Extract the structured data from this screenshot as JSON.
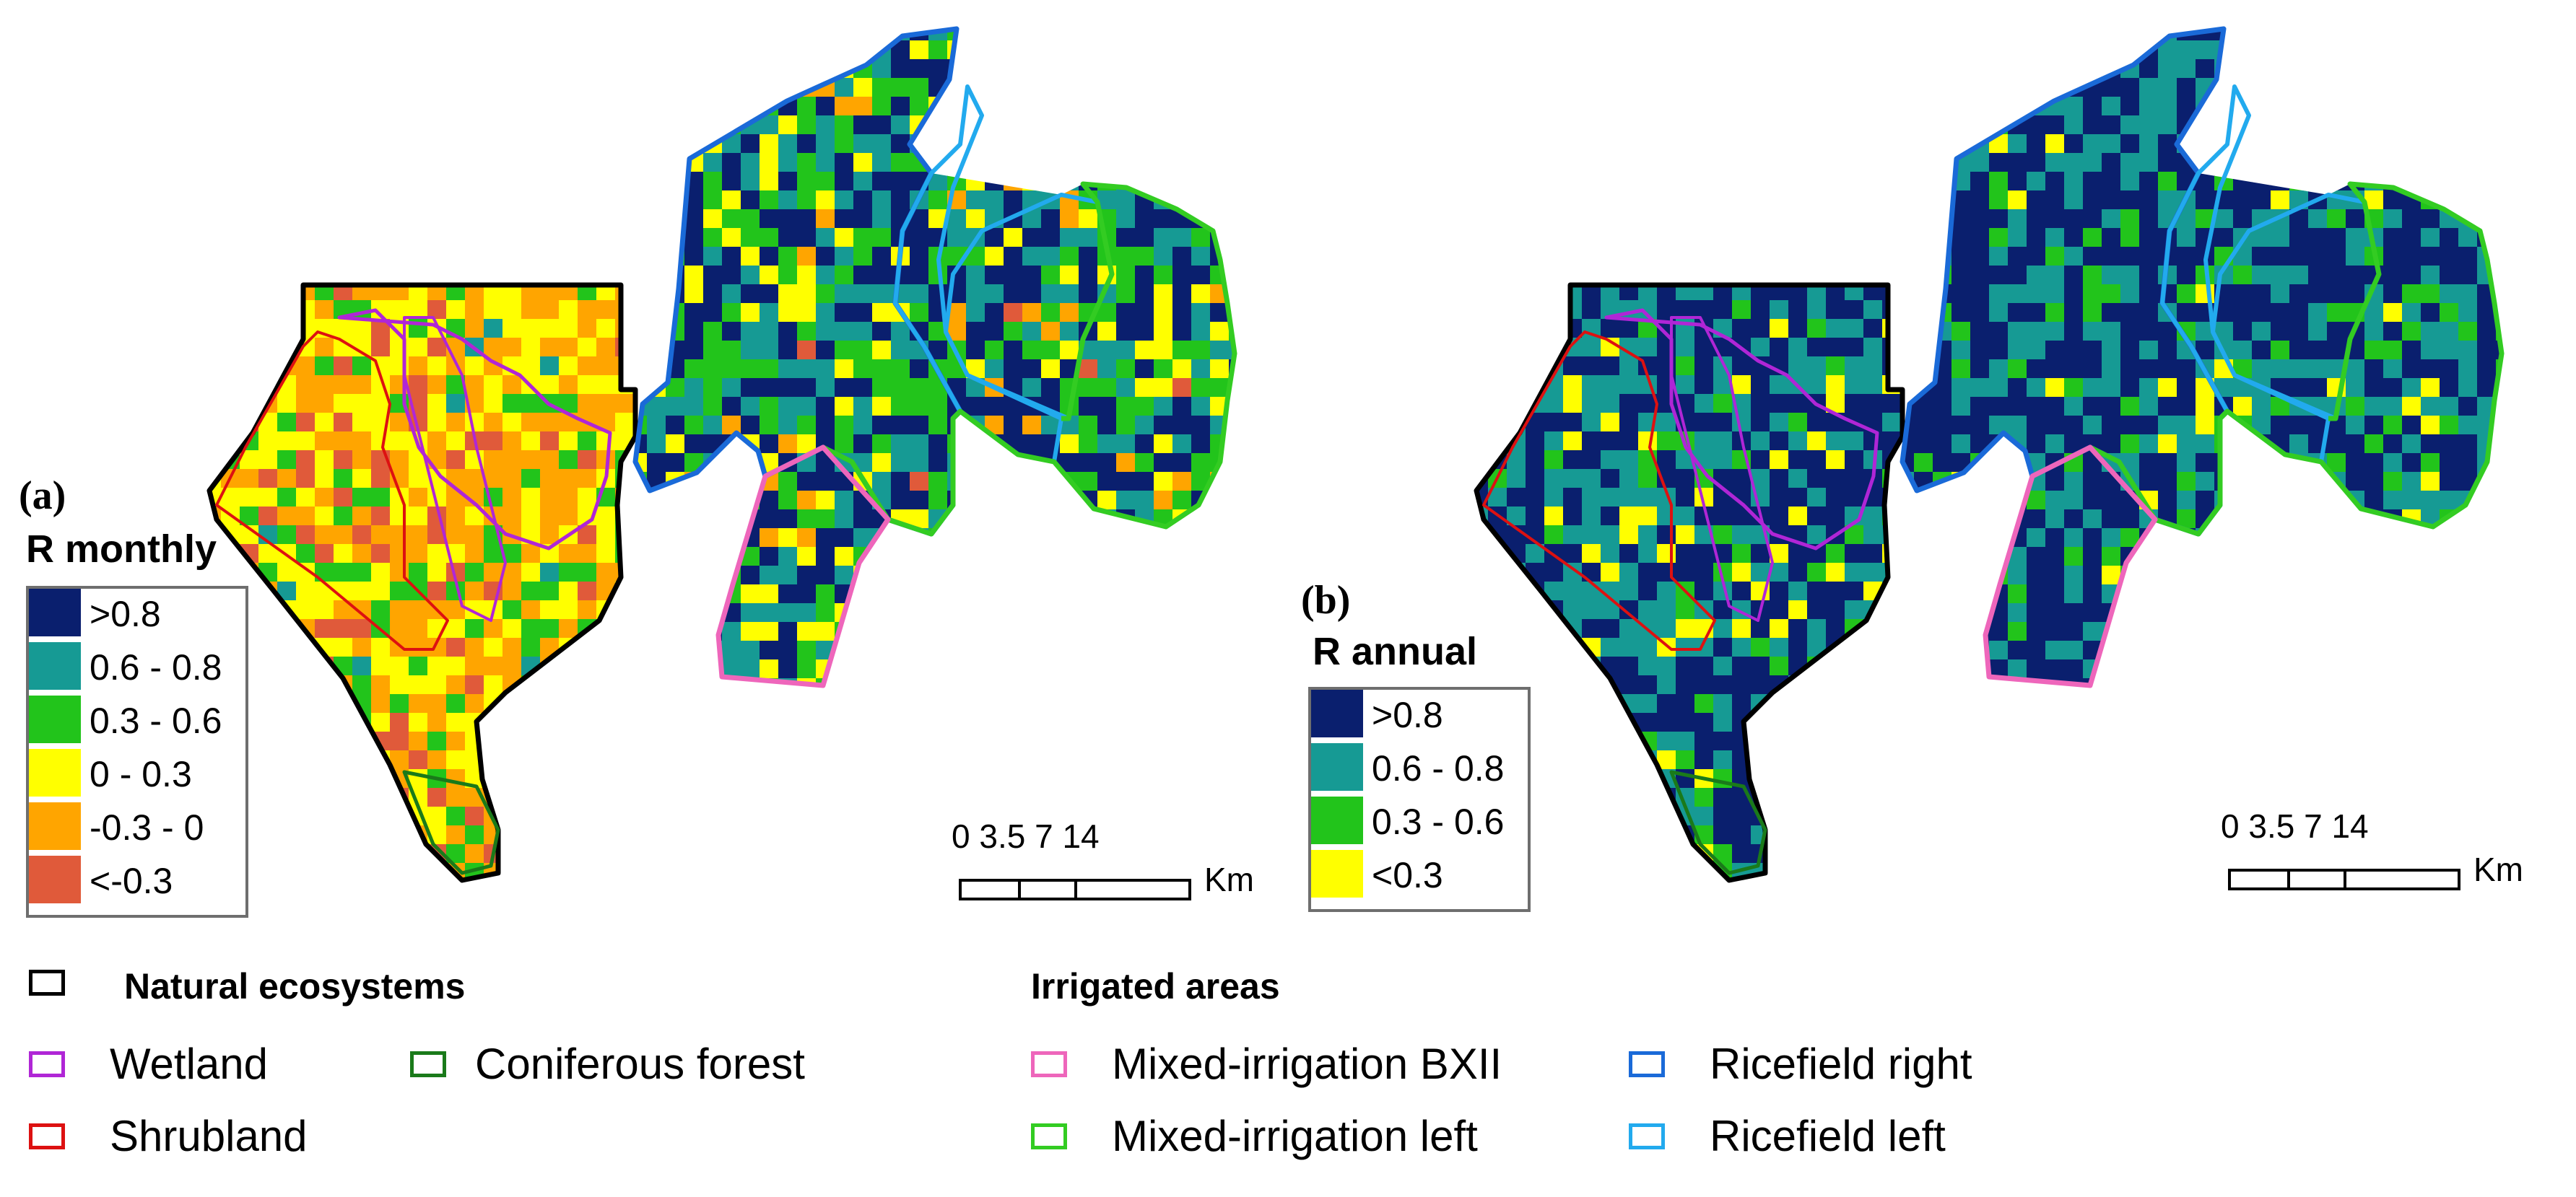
{
  "panels": {
    "a": {
      "label": "(a)",
      "legend_title": "R monthly",
      "classes": [
        {
          "label": ">0.8",
          "color": "#0a1f6e"
        },
        {
          "label": "0.6 - 0.8",
          "color": "#169a94"
        },
        {
          "label": "0.3 - 0.6",
          "color": "#22c41b"
        },
        {
          "label": "0 - 0.3",
          "color": "#ffff00"
        },
        {
          "label": "-0.3 - 0",
          "color": "#ffa500"
        },
        {
          "label": "<-0.3",
          "color": "#e05a3a"
        }
      ],
      "scale": {
        "ticks": "0 3.5 7       14",
        "unit": "Km"
      }
    },
    "b": {
      "label": "(b)",
      "legend_title": "R annual",
      "classes": [
        {
          "label": ">0.8",
          "color": "#0a1f6e"
        },
        {
          "label": "0.6 - 0.8",
          "color": "#169a94"
        },
        {
          "label": "0.3 - 0.6",
          "color": "#22c41b"
        },
        {
          "label": "<0.3",
          "color": "#ffff00"
        }
      ],
      "scale": {
        "ticks": "0 3.5 7       14",
        "unit": "Km"
      }
    }
  },
  "boundary_legend": {
    "natural_heading": "Natural ecosystems",
    "irrigated_heading": "Irrigated areas",
    "natural_color": "#000000",
    "items": [
      {
        "label": "Wetland",
        "color": "#b026d6"
      },
      {
        "label": "Shrubland",
        "color": "#dd1111"
      },
      {
        "label": "Coniferous forest",
        "color": "#1a7a1a"
      },
      {
        "label": "Mixed-irrigation BXII",
        "color": "#ee66bb"
      },
      {
        "label": "Mixed-irrigation left",
        "color": "#33cc22"
      },
      {
        "label": "Ricefield right",
        "color": "#1a6ad8"
      },
      {
        "label": "Ricefield left",
        "color": "#22aaee"
      }
    ]
  }
}
